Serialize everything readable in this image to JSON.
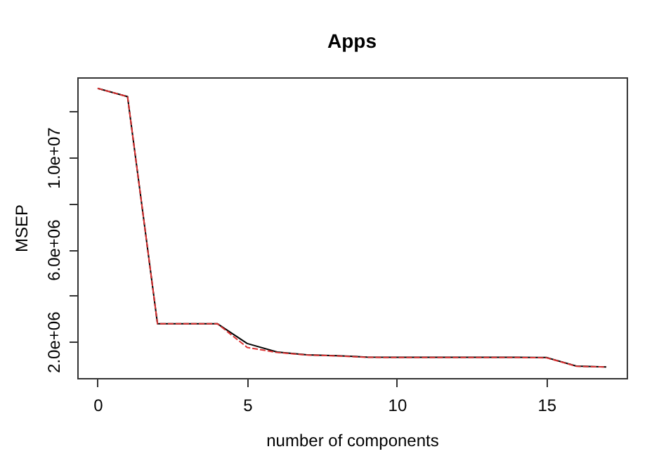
{
  "chart_data": {
    "type": "line",
    "title": "Apps",
    "xlabel": "number of components",
    "ylabel": "MSEP",
    "x": [
      0,
      1,
      2,
      3,
      4,
      5,
      6,
      7,
      8,
      9,
      10,
      11,
      12,
      13,
      14,
      15,
      16,
      17
    ],
    "series": [
      {
        "color": "#000000",
        "line_style": "solid",
        "values": [
          13000000,
          12640000,
          2780000,
          2780000,
          2780000,
          1920000,
          1550000,
          1430000,
          1390000,
          1330000,
          1320000,
          1320000,
          1320000,
          1320000,
          1320000,
          1310000,
          940000,
          900000
        ]
      },
      {
        "color": "#dd3333",
        "line_style": "dashed",
        "values": [
          13000000,
          12640000,
          2780000,
          2780000,
          2780000,
          1750000,
          1530000,
          1420000,
          1380000,
          1320000,
          1310000,
          1310000,
          1310000,
          1310000,
          1310000,
          1300000,
          930000,
          900000
        ]
      }
    ],
    "xlim": [
      -0.68,
      17.68
    ],
    "ylim": [
      420000,
      13480000
    ],
    "xticks": [
      0,
      5,
      10,
      15
    ],
    "yticks": [
      {
        "value": 2000000,
        "label": "2.0e+06"
      },
      {
        "value": 4000000,
        "label": null
      },
      {
        "value": 6000000,
        "label": "6.0e+06"
      },
      {
        "value": 8000000,
        "label": null
      },
      {
        "value": 10000000,
        "label": "1.0e+07"
      },
      {
        "value": 12000000,
        "label": null
      }
    ],
    "marker": "none"
  }
}
